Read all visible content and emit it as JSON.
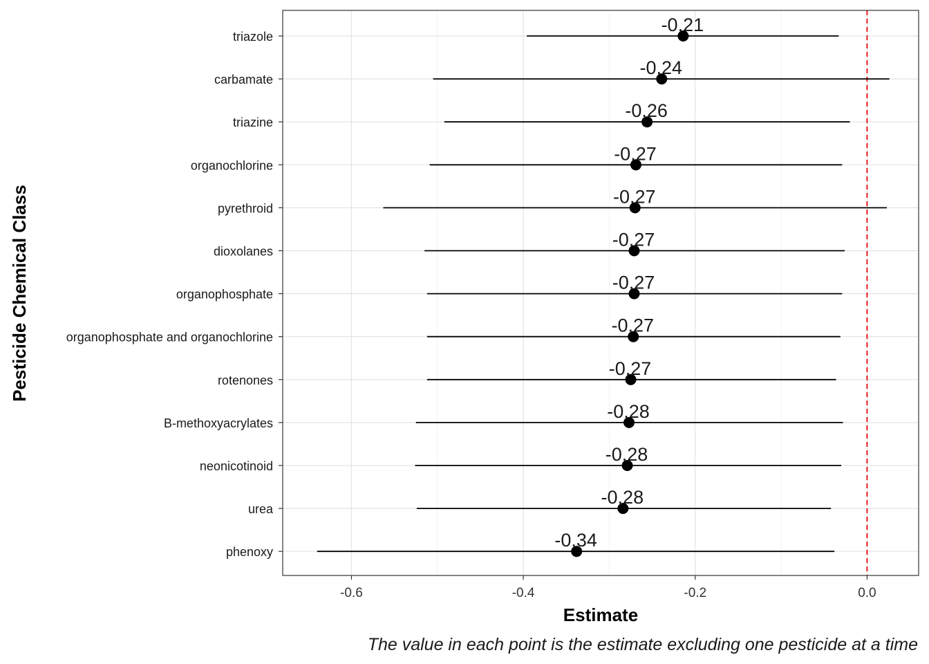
{
  "chart_data": {
    "type": "forest",
    "xlabel": "Estimate",
    "ylabel": "Pesticide Chemical Class",
    "caption": "The value in each point is the estimate excluding one pesticide at a time",
    "xlim": [
      -0.68,
      0.06
    ],
    "xticks": [
      -0.6,
      -0.4,
      -0.2,
      0.0
    ],
    "xtick_labels": [
      "-0.6",
      "-0.4",
      "-0.2",
      "0.0"
    ],
    "reference_line": {
      "x": 0.0,
      "color": "#e41a1c",
      "style": "dashed"
    },
    "grid": true,
    "point_color": "#000000",
    "rows": [
      {
        "category": "triazole",
        "estimate": -0.214,
        "lower": -0.396,
        "upper": -0.033,
        "label": "-0.21"
      },
      {
        "category": "carbamate",
        "estimate": -0.239,
        "lower": -0.505,
        "upper": 0.026,
        "label": "-0.24"
      },
      {
        "category": "triazine",
        "estimate": -0.256,
        "lower": -0.492,
        "upper": -0.02,
        "label": "-0.26"
      },
      {
        "category": "organochlorine",
        "estimate": -0.269,
        "lower": -0.509,
        "upper": -0.029,
        "label": "-0.27"
      },
      {
        "category": "pyrethroid",
        "estimate": -0.27,
        "lower": -0.563,
        "upper": 0.023,
        "label": "-0.27"
      },
      {
        "category": "dioxolanes",
        "estimate": -0.271,
        "lower": -0.515,
        "upper": -0.026,
        "label": "-0.27"
      },
      {
        "category": "organophosphate",
        "estimate": -0.271,
        "lower": -0.512,
        "upper": -0.029,
        "label": "-0.27"
      },
      {
        "category": "organophosphate and organochlorine",
        "estimate": -0.272,
        "lower": -0.512,
        "upper": -0.031,
        "label": "-0.27"
      },
      {
        "category": "rotenones",
        "estimate": -0.275,
        "lower": -0.512,
        "upper": -0.036,
        "label": "-0.27"
      },
      {
        "category": "B-methoxyacrylates",
        "estimate": -0.277,
        "lower": -0.525,
        "upper": -0.028,
        "label": "-0.28"
      },
      {
        "category": "neonicotinoid",
        "estimate": -0.279,
        "lower": -0.526,
        "upper": -0.03,
        "label": "-0.28"
      },
      {
        "category": "urea",
        "estimate": -0.284,
        "lower": -0.524,
        "upper": -0.042,
        "label": "-0.28"
      },
      {
        "category": "phenoxy",
        "estimate": -0.338,
        "lower": -0.64,
        "upper": -0.038,
        "label": "-0.34"
      }
    ]
  }
}
